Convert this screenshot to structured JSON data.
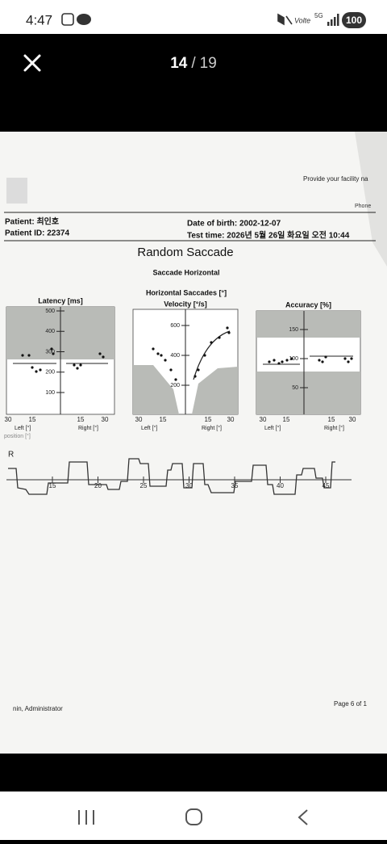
{
  "status_bar": {
    "time": "4:47",
    "network": "5G",
    "battery": "100"
  },
  "viewer": {
    "counter_current": "14",
    "counter_separator": "/",
    "counter_total": "19"
  },
  "document": {
    "facility": "Provide your facility na",
    "phone": "Phone",
    "patient": "Patient: 최인호",
    "patient_id": "Patient ID: 22374",
    "date_of_birth": "Date of birth: 2002-12-07",
    "test_time": "Test time: 2026년 5월 26일 화요일 오전 10:44",
    "title": "Random Saccade",
    "subtitle": "Saccade Horizontal",
    "group_title": "Horizontal Saccades [°]",
    "panels": [
      {
        "title": "Latency [ms]",
        "yticks": [
          "500",
          "400",
          "300",
          "200",
          "100"
        ],
        "xticks": [
          "30",
          "15",
          "15",
          "30"
        ],
        "left": "Left [°]",
        "right": "Right [°]"
      },
      {
        "title": "Velocity [°/s]",
        "yticks": [
          "600",
          "400",
          "200"
        ],
        "xticks": [
          "30",
          "15",
          "15",
          "30"
        ],
        "left": "Left [°]",
        "right": "Right [°]"
      },
      {
        "title": "Accuracy [%]",
        "yticks": [
          "150",
          "100",
          "50"
        ],
        "xticks": [
          "30",
          "15",
          "15",
          "30"
        ],
        "left": "Left [°]",
        "right": "Right [°]"
      }
    ],
    "position_label": "position [°]",
    "trace_label": "R",
    "trace_ticks": [
      "15",
      "20",
      "25",
      "30",
      "35",
      "40",
      "45"
    ],
    "footer_user": "nin, Administrator",
    "page": "Page 6 of 1"
  }
}
